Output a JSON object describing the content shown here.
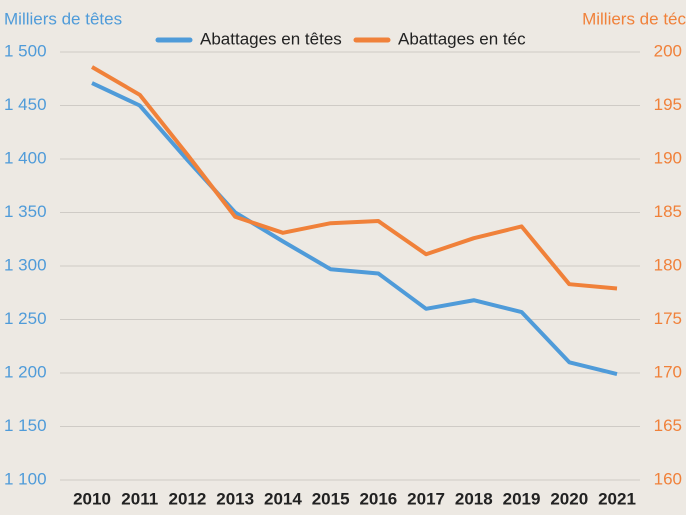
{
  "chart_data": {
    "type": "line",
    "y_label": "Milliers de têtes",
    "y2_label": "Milliers de téc",
    "categories": [
      "2010",
      "2011",
      "2012",
      "2013",
      "2014",
      "2015",
      "2016",
      "2017",
      "2018",
      "2019",
      "2020",
      "2021"
    ],
    "series": [
      {
        "name": "Abattages en têtes",
        "color": "#4f9bd9",
        "values": [
          1471,
          1450,
          1399,
          1350,
          1323,
          1297,
          1293,
          1260,
          1268,
          1257,
          1210,
          1199
        ]
      },
      {
        "name": "Abattages en téc",
        "color": "#f0813a",
        "axis": "y2",
        "values": [
          198.6,
          196.0,
          190.4,
          184.6,
          183.1,
          184.0,
          184.2,
          181.1,
          182.6,
          183.7,
          178.3,
          177.9
        ]
      }
    ],
    "ylim": [
      1100,
      1500
    ],
    "yticks": [
      {
        "value": 1100,
        "label": "1 100"
      },
      {
        "value": 1150,
        "label": "1 150"
      },
      {
        "value": 1200,
        "label": "1 200"
      },
      {
        "value": 1250,
        "label": "1 250"
      },
      {
        "value": 1300,
        "label": "1 300"
      },
      {
        "value": 1350,
        "label": "1 350"
      },
      {
        "value": 1400,
        "label": "1 400"
      },
      {
        "value": 1450,
        "label": "1 450"
      },
      {
        "value": 1500,
        "label": "1 500"
      }
    ],
    "y2lim": [
      160,
      200
    ],
    "y2ticks": [
      160,
      165,
      170,
      175,
      180,
      185,
      190,
      195,
      200
    ],
    "grid": true,
    "legend": "top"
  }
}
